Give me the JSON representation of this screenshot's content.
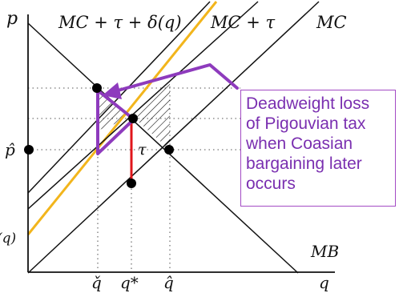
{
  "diagram": {
    "axis_labels": {
      "y": "p",
      "x": "q"
    },
    "curve_labels": {
      "mc_tau_delta": "MC + τ + δ(q)",
      "mc_tau": "MC + τ",
      "mc": "MC",
      "mb": "MB"
    },
    "left_cut_label": "(q)",
    "tick_labels": {
      "p_hat": "p̂",
      "q_check": "q̌",
      "q_star": "q*",
      "q_hat": "q̂"
    },
    "tax_label": "τ",
    "callout": {
      "lines": [
        "Deadweight loss",
        "of Pigouvian tax",
        "when Coasian",
        "bargaining later",
        "occurs"
      ]
    },
    "colors": {
      "curves": "#111111",
      "marginal_damage_line": "#f2b51c",
      "tax_wedge": "#e0161b",
      "callout": "#8e3bbd",
      "gridlines": "#777777"
    }
  }
}
